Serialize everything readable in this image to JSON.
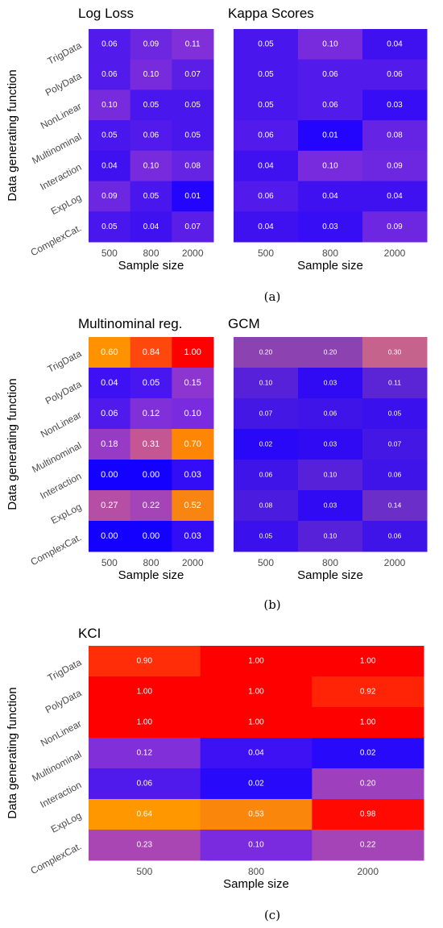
{
  "chart_data": [
    {
      "type": "heatmap",
      "title": "Log Loss",
      "xlabel": "Sample size",
      "ylabel": "Data generating function",
      "categories": [
        "500",
        "800",
        "2000"
      ],
      "rows": [
        "TrigData",
        "PolyData",
        "NonLinear",
        "Multinominal",
        "Interaction",
        "ExpLog",
        "ComplexCat."
      ],
      "values": [
        [
          0.06,
          0.09,
          0.11
        ],
        [
          0.06,
          0.1,
          0.07
        ],
        [
          0.1,
          0.05,
          0.05
        ],
        [
          0.05,
          0.06,
          0.05
        ],
        [
          0.04,
          0.1,
          0.08
        ],
        [
          0.09,
          0.05,
          0.01
        ],
        [
          0.05,
          0.04,
          0.07
        ]
      ],
      "labels": [
        [
          "0.06",
          "0.09",
          "0.11"
        ],
        [
          "0.06",
          "0.10",
          "0.07"
        ],
        [
          "0.10",
          "0.05",
          "0.05"
        ],
        [
          "0.05",
          "0.06",
          "0.05"
        ],
        [
          "0.04",
          "0.10",
          "0.08"
        ],
        [
          "0.09",
          "0.05",
          "0.01"
        ],
        [
          "0.05",
          "0.04",
          "0.07"
        ]
      ],
      "colorscale": [
        "#1400ff",
        "#ff0000",
        "#ffa500"
      ]
    },
    {
      "type": "heatmap",
      "title": "Kappa Scores",
      "xlabel": "Sample size",
      "categories": [
        "500",
        "800",
        "2000"
      ],
      "rows": [
        "TrigData",
        "PolyData",
        "NonLinear",
        "Multinominal",
        "Interaction",
        "ExpLog",
        "ComplexCat."
      ],
      "values": [
        [
          0.05,
          0.1,
          0.04
        ],
        [
          0.05,
          0.06,
          0.06
        ],
        [
          0.05,
          0.06,
          0.03
        ],
        [
          0.06,
          0.01,
          0.08
        ],
        [
          0.04,
          0.1,
          0.09
        ],
        [
          0.06,
          0.04,
          0.04
        ],
        [
          0.04,
          0.03,
          0.09
        ]
      ],
      "labels": [
        [
          "0.05",
          "0.10",
          "0.04"
        ],
        [
          "0.05",
          "0.06",
          "0.06"
        ],
        [
          "0.05",
          "0.06",
          "0.03"
        ],
        [
          "0.06",
          "0.01",
          "0.08"
        ],
        [
          "0.04",
          "0.10",
          "0.09"
        ],
        [
          "0.06",
          "0.04",
          "0.04"
        ],
        [
          "0.04",
          "0.03",
          "0.09"
        ]
      ]
    },
    {
      "type": "heatmap",
      "title": "Multinominal reg.",
      "xlabel": "Sample size",
      "ylabel": "Data generating function",
      "categories": [
        "500",
        "800",
        "2000"
      ],
      "rows": [
        "TrigData",
        "PolyData",
        "NonLinear",
        "Multinominal",
        "Interaction",
        "ExpLog",
        "ComplexCat."
      ],
      "values": [
        [
          0.6,
          0.84,
          1.0
        ],
        [
          0.04,
          0.05,
          0.15
        ],
        [
          0.06,
          0.12,
          0.1
        ],
        [
          0.18,
          0.31,
          0.7
        ],
        [
          0.0,
          0.0,
          0.03
        ],
        [
          0.27,
          0.22,
          0.52
        ],
        [
          0.0,
          0.0,
          0.03
        ]
      ],
      "labels": [
        [
          "0.60",
          "0.84",
          "1.00"
        ],
        [
          "0.04",
          "0.05",
          "0.15"
        ],
        [
          "0.06",
          "0.12",
          "0.10"
        ],
        [
          "0.18",
          "0.31",
          "0.70"
        ],
        [
          "0.00",
          "0.00",
          "0.03"
        ],
        [
          "0.27",
          "0.22",
          "0.52"
        ],
        [
          "0.00",
          "0.00",
          "0.03"
        ]
      ]
    },
    {
      "type": "heatmap",
      "title": "GCM",
      "xlabel": "Sample size",
      "categories": [
        "500",
        "800",
        "2000"
      ],
      "rows": [
        "TrigData",
        "PolyData",
        "NonLinear",
        "Multinominal",
        "Interaction",
        "ExpLog",
        "ComplexCat."
      ],
      "values": [
        [
          0.2,
          0.2,
          0.3
        ],
        [
          0.1,
          0.03,
          0.11
        ],
        [
          0.07,
          0.06,
          0.05
        ],
        [
          0.02,
          0.03,
          0.07
        ],
        [
          0.06,
          0.1,
          0.06
        ],
        [
          0.08,
          0.03,
          0.14
        ],
        [
          0.05,
          0.1,
          0.06
        ]
      ],
      "labels": [
        [
          "0.20",
          "0.20",
          "0.30"
        ],
        [
          "0.10",
          "0.03",
          "0.11"
        ],
        [
          "0.07",
          "0.06",
          "0.05"
        ],
        [
          "0.02",
          "0.03",
          "0.07"
        ],
        [
          "0.06",
          "0.10",
          "0.06"
        ],
        [
          "0.08",
          "0.03",
          "0.14"
        ],
        [
          "0.05",
          "0.10",
          "0.06"
        ]
      ]
    },
    {
      "type": "heatmap",
      "title": "KCI",
      "xlabel": "Sample size",
      "ylabel": "Data generating function",
      "categories": [
        "500",
        "800",
        "2000"
      ],
      "rows": [
        "TrigData",
        "PolyData",
        "NonLinear",
        "Multinominal",
        "Interaction",
        "ExpLog",
        "ComplexCat."
      ],
      "values": [
        [
          0.9,
          1.0,
          1.0
        ],
        [
          1.0,
          1.0,
          0.92
        ],
        [
          1.0,
          1.0,
          1.0
        ],
        [
          0.12,
          0.04,
          0.02
        ],
        [
          0.06,
          0.02,
          0.2
        ],
        [
          0.64,
          0.53,
          0.98
        ],
        [
          0.23,
          0.1,
          0.22
        ]
      ],
      "labels": [
        [
          "0.90",
          "1.00",
          "1.00"
        ],
        [
          "1.00",
          "1.00",
          "0.92"
        ],
        [
          "1.00",
          "1.00",
          "1.00"
        ],
        [
          "0.12",
          "0.04",
          "0.02"
        ],
        [
          "0.06",
          "0.02",
          "0.20"
        ],
        [
          "0.64",
          "0.53",
          "0.98"
        ],
        [
          "0.23",
          "0.10",
          "0.22"
        ]
      ]
    }
  ],
  "captions": [
    "(a)",
    "(b)",
    "(c)"
  ]
}
